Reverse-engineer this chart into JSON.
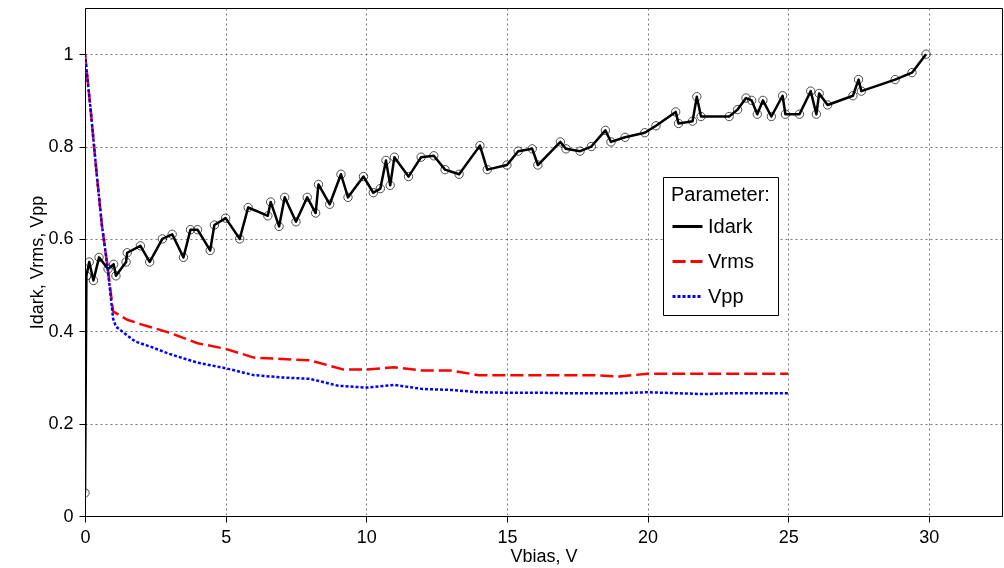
{
  "chart_data": {
    "type": "line",
    "xlabel": "Vbias, V",
    "ylabel": "Idark, Vrms, Vpp",
    "legend_title": "Parameter:",
    "xlim": [
      0,
      32.6
    ],
    "ylim": [
      0,
      1.1
    ],
    "xticks": [
      0,
      5,
      10,
      15,
      20,
      25,
      30
    ],
    "yticks": [
      0,
      0.2,
      0.4,
      0.6,
      0.8,
      1
    ],
    "grid": true,
    "legend": "right",
    "series": [
      {
        "name": "Idark",
        "color": "#000000",
        "marker": "circle",
        "line_style": "solid",
        "x": [
          0,
          0.05,
          0.15,
          0.3,
          0.5,
          0.82,
          1.02,
          1.1,
          1.46,
          1.5,
          1.97,
          2.3,
          2.75,
          3.1,
          3.5,
          3.75,
          4,
          4.45,
          4.6,
          5,
          5.5,
          5.8,
          6.5,
          6.6,
          6.9,
          7.1,
          7.5,
          7.9,
          8.2,
          8.3,
          8.7,
          9.1,
          9.35,
          9.9,
          10.25,
          10.5,
          10.7,
          10.85,
          11,
          11.5,
          11.95,
          12.4,
          12.8,
          13.3,
          14.04,
          14.3,
          15,
          15.4,
          15.9,
          16.1,
          16.9,
          17.1,
          17.6,
          18,
          18.5,
          18.7,
          19.2,
          19.9,
          20.3,
          21,
          21.1,
          21.6,
          21.75,
          21.9,
          22.9,
          23.2,
          23.5,
          23.7,
          23.9,
          24.1,
          24.4,
          24.8,
          24.9,
          25.4,
          25.8,
          26,
          26.1,
          26.4,
          27.3,
          27.5,
          27.6,
          28.8,
          29.4,
          29.9
        ],
        "values": [
          0.05,
          0.52,
          0.55,
          0.51,
          0.56,
          0.535,
          0.545,
          0.52,
          0.55,
          0.57,
          0.585,
          0.55,
          0.6,
          0.61,
          0.56,
          0.62,
          0.62,
          0.575,
          0.63,
          0.645,
          0.6,
          0.668,
          0.65,
          0.68,
          0.627,
          0.69,
          0.637,
          0.69,
          0.656,
          0.718,
          0.675,
          0.74,
          0.69,
          0.735,
          0.7,
          0.709,
          0.77,
          0.716,
          0.777,
          0.735,
          0.777,
          0.78,
          0.75,
          0.74,
          0.802,
          0.75,
          0.76,
          0.79,
          0.795,
          0.76,
          0.81,
          0.795,
          0.79,
          0.8,
          0.835,
          0.81,
          0.82,
          0.83,
          0.845,
          0.875,
          0.85,
          0.855,
          0.908,
          0.865,
          0.865,
          0.88,
          0.905,
          0.9,
          0.87,
          0.9,
          0.865,
          0.91,
          0.87,
          0.87,
          0.92,
          0.87,
          0.915,
          0.89,
          0.91,
          0.945,
          0.92,
          0.945,
          0.96,
          1.0
        ]
      },
      {
        "name": "Vrms",
        "color": "#ff0000",
        "line_style": "dashed",
        "x": [
          0,
          0.2,
          0.4,
          0.6,
          0.8,
          1,
          1.5,
          2,
          3,
          4,
          5,
          6,
          7,
          8,
          9.2,
          10,
          11,
          12,
          13,
          14,
          15,
          16,
          17,
          18,
          19,
          20,
          21,
          22,
          23,
          24,
          25
        ],
        "values": [
          1.0,
          0.88,
          0.75,
          0.63,
          0.54,
          0.443,
          0.425,
          0.415,
          0.397,
          0.374,
          0.362,
          0.343,
          0.34,
          0.337,
          0.317,
          0.317,
          0.322,
          0.315,
          0.315,
          0.305,
          0.305,
          0.305,
          0.305,
          0.305,
          0.302,
          0.308,
          0.308,
          0.308,
          0.308,
          0.308,
          0.308
        ]
      },
      {
        "name": "Vpp",
        "color": "#0000ff",
        "line_style": "dotted",
        "x": [
          0,
          0.2,
          0.4,
          0.6,
          0.8,
          1,
          1.1,
          1.78,
          2.4,
          3,
          4,
          5,
          6,
          7,
          8,
          9,
          10,
          11,
          12,
          13,
          14,
          15,
          16,
          17,
          18,
          19,
          20,
          21,
          22,
          23,
          24,
          25
        ],
        "values": [
          1.0,
          0.88,
          0.75,
          0.63,
          0.54,
          0.427,
          0.41,
          0.378,
          0.365,
          0.351,
          0.332,
          0.32,
          0.305,
          0.3,
          0.297,
          0.282,
          0.278,
          0.284,
          0.275,
          0.273,
          0.268,
          0.267,
          0.267,
          0.266,
          0.266,
          0.266,
          0.268,
          0.266,
          0.264,
          0.266,
          0.266,
          0.266
        ]
      }
    ]
  }
}
